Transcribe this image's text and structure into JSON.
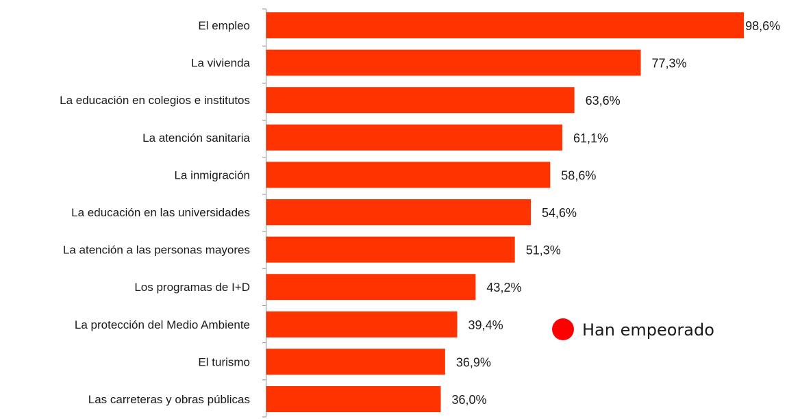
{
  "chart_data": {
    "type": "bar",
    "orientation": "horizontal",
    "categories": [
      "El empleo",
      "La vivienda",
      "La educación en colegios e institutos",
      "La atención sanitaria",
      "La inmigración",
      "La educación en las universidades",
      "La atención a las personas mayores",
      "Los programas de I+D",
      "La protección del Medio Ambiente",
      "El turismo",
      "Las carreteras y obras públicas"
    ],
    "series": [
      {
        "name": "Han empeorado",
        "color": "#ff3300",
        "values": [
          98.6,
          77.3,
          63.6,
          61.1,
          58.6,
          54.6,
          51.3,
          43.2,
          39.4,
          36.9,
          36.0
        ],
        "labels": [
          "98,6%",
          "77,3%",
          "63,6%",
          "61,1%",
          "58,6%",
          "54,6%",
          "51,3%",
          "43,2%",
          "39,4%",
          "36,9%",
          "36,0%"
        ]
      }
    ],
    "xlim": [
      0,
      100
    ],
    "grid": false,
    "legend": {
      "position": "right",
      "marker_color": "#ff0000"
    },
    "title": "",
    "xlabel": "",
    "ylabel": ""
  }
}
